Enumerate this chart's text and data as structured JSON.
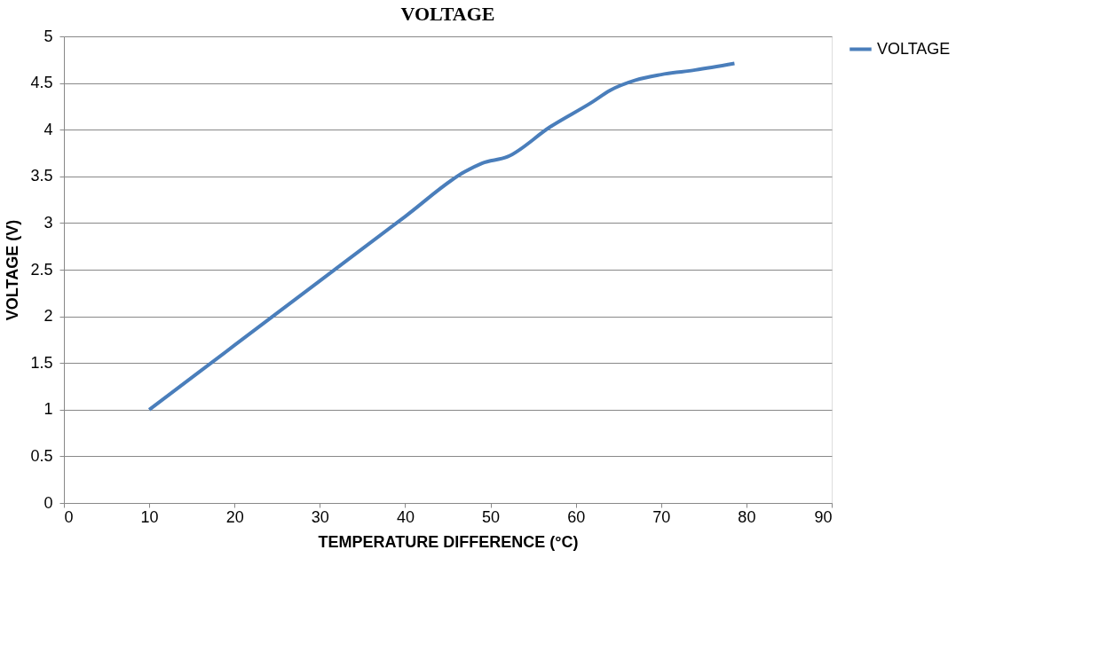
{
  "chart_data": {
    "type": "line",
    "title": "VOLTAGE",
    "xlabel": "TEMPERATURE DIFFERENCE (°C)",
    "ylabel": "VOLTAGE (V)",
    "x": [
      10,
      20,
      30,
      40,
      47,
      49,
      52,
      57,
      62,
      64,
      67,
      70,
      74,
      78.6
    ],
    "series": [
      {
        "name": "VOLTAGE",
        "color": "#4a7ebb",
        "values": [
          1.0,
          1.69,
          2.38,
          3.07,
          3.55,
          3.64,
          3.71,
          4.03,
          4.3,
          4.42,
          4.53,
          4.59,
          4.64,
          4.71
        ]
      }
    ],
    "xlim": [
      0,
      90
    ],
    "xticks": [
      0,
      10,
      20,
      30,
      40,
      50,
      60,
      70,
      80,
      90
    ],
    "ylim": [
      0,
      5
    ],
    "yticks": [
      0,
      0.5,
      1,
      1.5,
      2,
      2.5,
      3,
      3.5,
      4,
      4.5,
      5
    ],
    "grid": "y",
    "legend": "right",
    "marker": "none",
    "line_style": "solid"
  }
}
